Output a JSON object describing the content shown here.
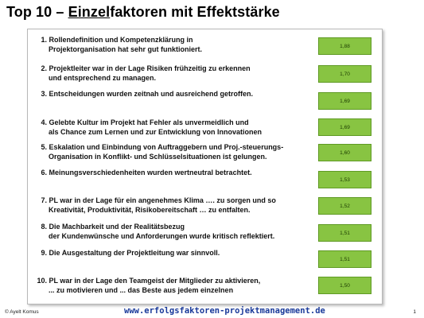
{
  "title": {
    "prefix": "Top 10 – ",
    "underlined": "Einzel",
    "suffix": "faktoren mit Effektstärke"
  },
  "items": [
    {
      "number": "1.",
      "line1": "Rollendefinition und Kompetenzklärung in",
      "line2": "Projektorganisation hat sehr gut funktioniert.",
      "value": "1,88"
    },
    {
      "number": "2.",
      "line1": "Projektleiter war in der Lage Risiken frühzeitig zu erkennen",
      "line2": "und entsprechend zu managen.",
      "value": "1,70"
    },
    {
      "number": "3.",
      "line1": "Entscheidungen wurden zeitnah und ausreichend getroffen.",
      "line2": "",
      "value": "1,69"
    },
    {
      "number": "4.",
      "line1": "Gelebte Kultur im Projekt hat Fehler als unvermeidlich und",
      "line2": "als Chance zum Lernen und zur Entwicklung von Innovationen",
      "value": "1,69"
    },
    {
      "number": "5.",
      "line1": "Eskalation und Einbindung von Auftraggebern und Proj.-steuerungs-",
      "line2": "Organisation in Konflikt- und Schlüsselsituationen ist gelungen.",
      "value": "1,60"
    },
    {
      "number": "6.",
      "line1": "Meinungsverschiedenheiten wurden wertneutral betrachtet.",
      "line2": "",
      "value": "1,53"
    },
    {
      "number": "7.",
      "line1": "PL war in der Lage für ein angenehmes Klima …. zu sorgen und so",
      "line2": "Kreativität, Produktivität, Risikobereitschaft … zu entfalten.",
      "value": "1,52"
    },
    {
      "number": "8.",
      "line1": "Die Machbarkeit und der Realitätsbezug",
      "line2": "der Kundenwünsche und Anforderungen wurde kritisch reflektiert.",
      "value": "1,51"
    },
    {
      "number": "9.",
      "line1": "Die Ausgestaltung der Projektleitung war sinnvoll.",
      "line2": "",
      "value": "1,51"
    },
    {
      "number": "10.",
      "line1": "PL war in der Lage den Teamgeist der Mitglieder zu aktivieren,",
      "line2": "... zu motivieren und ... das Beste aus jedem einzelnen",
      "value": "1,50"
    }
  ],
  "footer": {
    "copyright": "© Ayelt Komus",
    "url": "www.erfolgsfaktoren-projektmanagement.de",
    "page": "1"
  },
  "colors": {
    "bar": "#88c442",
    "url": "#1a3a9a"
  }
}
